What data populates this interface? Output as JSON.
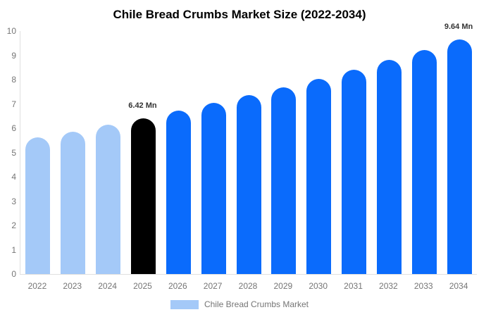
{
  "title": "Chile Bread Crumbs Market Size (2022-2034)",
  "legend": {
    "label": "Chile Bread Crumbs Market",
    "swatch_color": "#a4c9f8"
  },
  "colors": {
    "historical_bar": "#a4c9f8",
    "base_year_bar": "#000000",
    "forecast_bar": "#0a6bfc",
    "axis_line": "#e0e0e0",
    "tick_label": "#757575",
    "data_label": "#333333",
    "title": "#000000",
    "background": "#ffffff"
  },
  "chart_data": {
    "type": "bar",
    "title": "Chile Bread Crumbs Market Size (2022-2034)",
    "xlabel": "",
    "ylabel": "",
    "unit": "Mn",
    "categories": [
      "2022",
      "2023",
      "2024",
      "2025",
      "2026",
      "2027",
      "2028",
      "2029",
      "2030",
      "2031",
      "2032",
      "2033",
      "2034"
    ],
    "values": [
      5.61,
      5.87,
      6.14,
      6.42,
      6.72,
      7.03,
      7.35,
      7.69,
      8.04,
      8.41,
      8.8,
      9.21,
      9.64
    ],
    "bar_colors": [
      "#a4c9f8",
      "#a4c9f8",
      "#a4c9f8",
      "#000000",
      "#0a6bfc",
      "#0a6bfc",
      "#0a6bfc",
      "#0a6bfc",
      "#0a6bfc",
      "#0a6bfc",
      "#0a6bfc",
      "#0a6bfc",
      "#0a6bfc"
    ],
    "annotations": [
      {
        "category": "2025",
        "text": "6.42 Mn"
      },
      {
        "category": "2034",
        "text": "9.64 Mn"
      }
    ],
    "ylim": [
      0,
      10
    ],
    "yticks": [
      0,
      1,
      2,
      3,
      4,
      5,
      6,
      7,
      8,
      9,
      10
    ],
    "grid": false,
    "legend_position": "bottom",
    "legend_entries": [
      "Chile Bread Crumbs Market"
    ]
  }
}
